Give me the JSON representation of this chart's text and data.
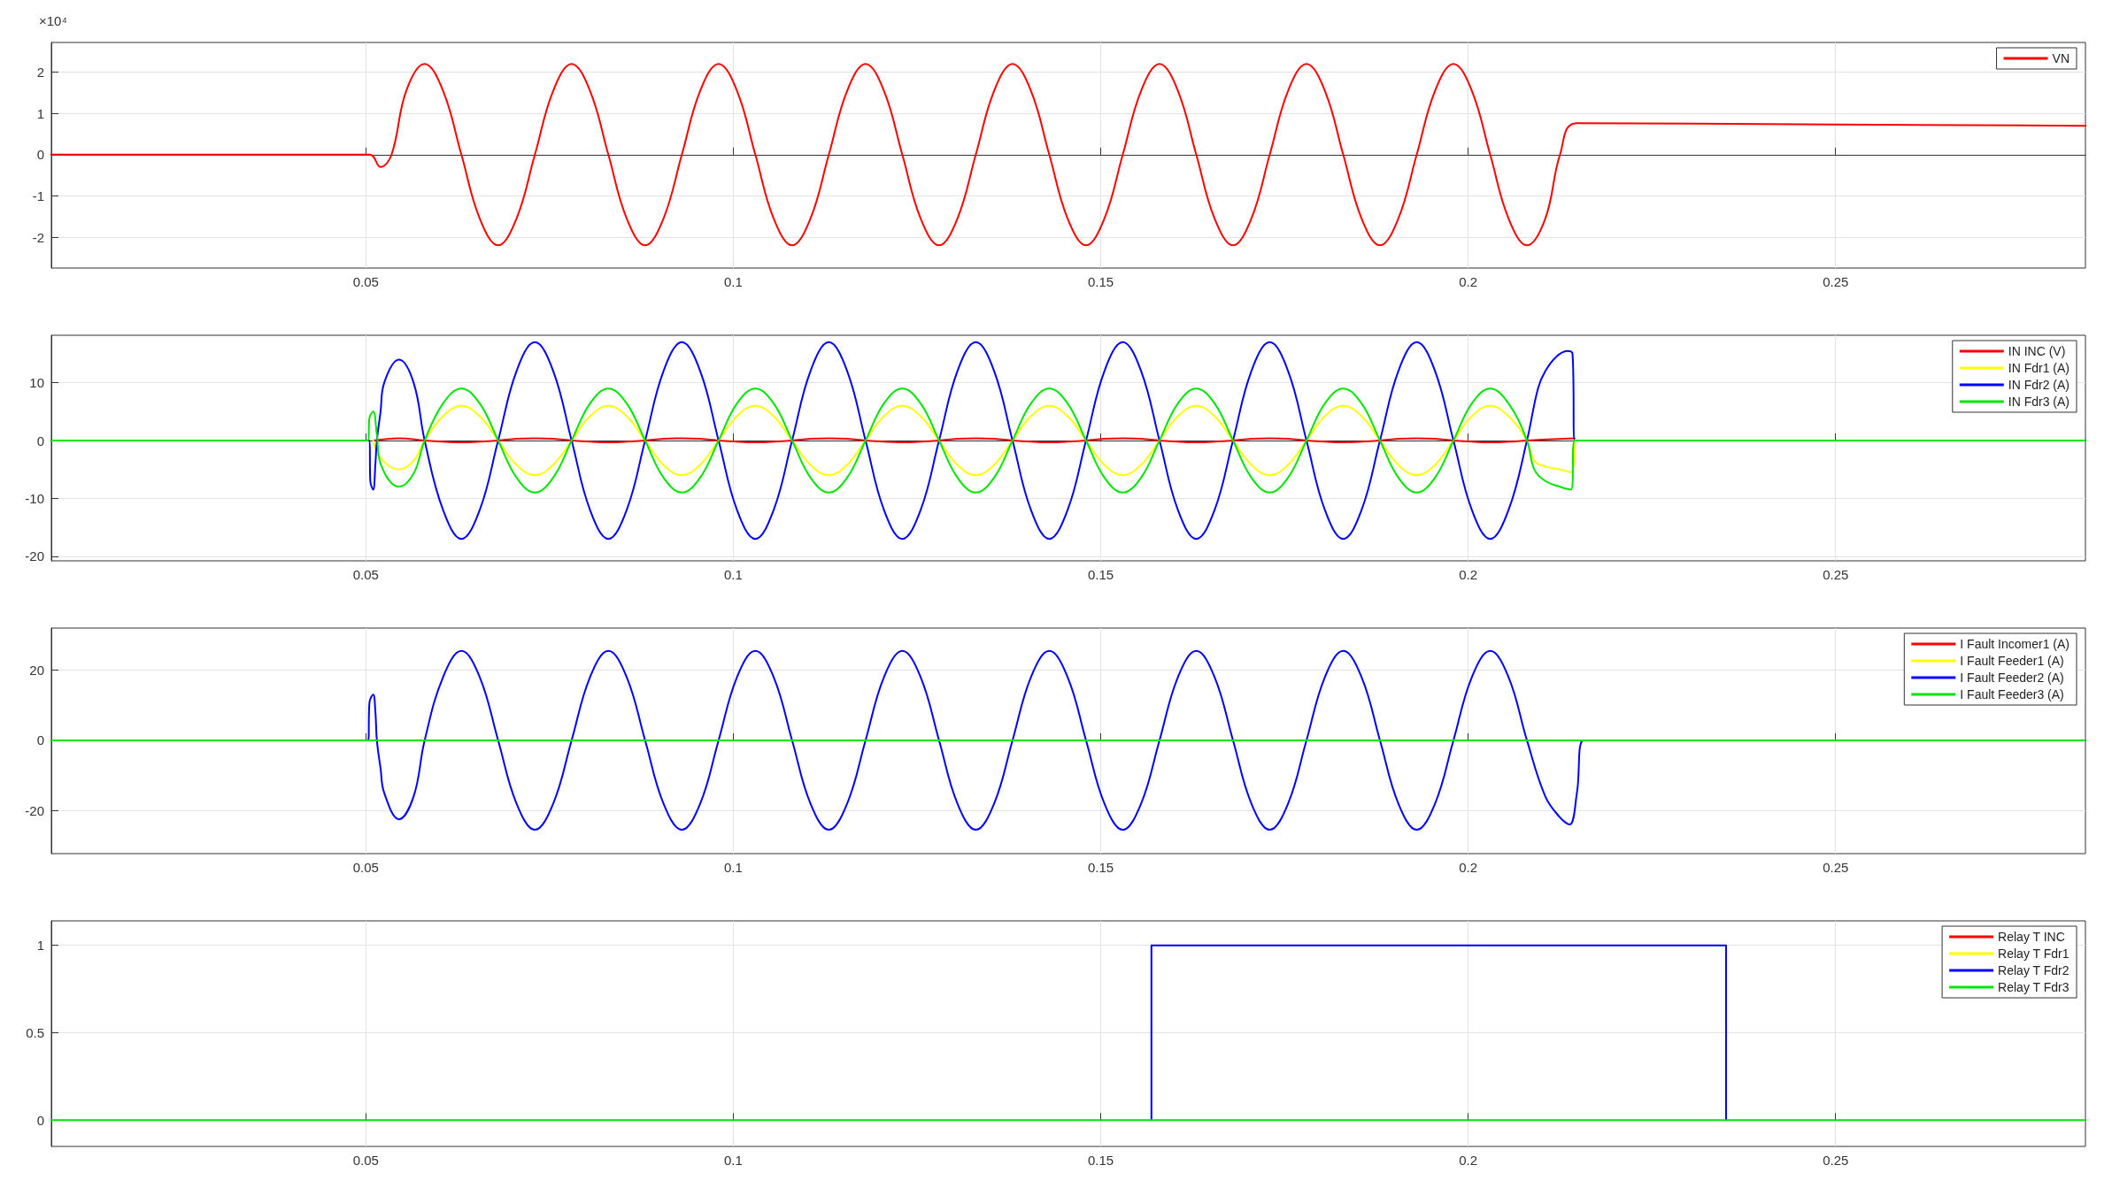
{
  "chart_data": [
    {
      "type": "line",
      "annotations": [
        "×10⁴"
      ],
      "xlim": [
        0.0072,
        0.284
      ],
      "xticks": [
        0.05,
        0.1,
        0.15,
        0.2,
        0.25
      ],
      "ylim": [
        -2.75,
        2.72
      ],
      "yticks": [
        -2,
        -1,
        0,
        1,
        2
      ],
      "grid": true,
      "legend": "top right",
      "marker": "none",
      "line_style": "solid",
      "series": [
        {
          "name": "VN",
          "color": "#ff0000",
          "x": [
            0.0072,
            0.0505,
            0.052,
            0.0535,
            0.0555,
            0.058,
            0.0605,
            0.063,
            0.0655,
            0.068,
            0.0705,
            0.073,
            0.0755,
            0.078,
            0.0805,
            0.083,
            0.0855,
            0.088,
            0.0905,
            0.093,
            0.0955,
            0.098,
            0.1005,
            0.103,
            0.1055,
            0.108,
            0.1105,
            0.113,
            0.1155,
            0.118,
            0.1205,
            0.123,
            0.1255,
            0.128,
            0.1305,
            0.133,
            0.1355,
            0.138,
            0.1405,
            0.143,
            0.1455,
            0.148,
            0.1505,
            0.153,
            0.1555,
            0.158,
            0.1605,
            0.163,
            0.1655,
            0.168,
            0.1705,
            0.173,
            0.1755,
            0.178,
            0.1805,
            0.183,
            0.1855,
            0.188,
            0.1905,
            0.193,
            0.1955,
            0.198,
            0.2005,
            0.203,
            0.2055,
            0.208,
            0.2105,
            0.2125,
            0.2147,
            0.25,
            0.284
          ],
          "values": [
            0,
            0,
            -0.3,
            0,
            1.55,
            2.2,
            1.55,
            0,
            -1.55,
            -2.2,
            -1.55,
            0,
            1.55,
            2.2,
            1.55,
            0,
            -1.55,
            -2.2,
            -1.55,
            0,
            1.55,
            2.2,
            1.55,
            0,
            -1.55,
            -2.2,
            -1.55,
            0,
            1.55,
            2.2,
            1.55,
            0,
            -1.55,
            -2.2,
            -1.55,
            0,
            1.55,
            2.2,
            1.55,
            0,
            -1.55,
            -2.2,
            -1.55,
            0,
            1.55,
            2.2,
            1.55,
            0,
            -1.55,
            -2.2,
            -1.55,
            0,
            1.55,
            2.2,
            1.55,
            0,
            -1.55,
            -2.2,
            -1.55,
            0,
            1.55,
            2.2,
            1.55,
            0,
            -1.55,
            -2.2,
            -1.55,
            0,
            0.76,
            0.73,
            0.7
          ]
        }
      ]
    },
    {
      "type": "line",
      "xlim": [
        0.0072,
        0.284
      ],
      "xticks": [
        0.05,
        0.1,
        0.15,
        0.2,
        0.25
      ],
      "ylim": [
        -20.8,
        18.2
      ],
      "yticks": [
        -20,
        -10,
        0,
        10
      ],
      "grid": true,
      "legend": "top right",
      "marker": "none",
      "line_style": "solid",
      "series": [
        {
          "name": "IN INC (V)",
          "color": "#ff0000",
          "x": [
            0.051,
            0.0545,
            0.058,
            0.0605,
            0.063,
            0.0655,
            0.068,
            0.0705,
            0.073,
            0.0755,
            0.078,
            0.0805,
            0.083,
            0.0855,
            0.088,
            0.0905,
            0.093,
            0.0955,
            0.098,
            0.1005,
            0.103,
            0.1055,
            0.108,
            0.1105,
            0.113,
            0.1155,
            0.118,
            0.1205,
            0.123,
            0.1255,
            0.128,
            0.1305,
            0.133,
            0.1355,
            0.138,
            0.1405,
            0.143,
            0.1455,
            0.148,
            0.1505,
            0.153,
            0.1555,
            0.158,
            0.1605,
            0.163,
            0.1655,
            0.168,
            0.1705,
            0.173,
            0.1755,
            0.178,
            0.1805,
            0.183,
            0.1855,
            0.188,
            0.1905,
            0.193,
            0.1955,
            0.198,
            0.2005,
            0.203,
            0.2055,
            0.208,
            0.2145
          ],
          "values": [
            0,
            0.4,
            0,
            -0.2,
            -0.3,
            -0.2,
            0,
            0.3,
            0.4,
            0.3,
            0,
            -0.2,
            -0.3,
            -0.2,
            0,
            0.3,
            0.4,
            0.3,
            0,
            -0.2,
            -0.3,
            -0.2,
            0,
            0.3,
            0.4,
            0.3,
            0,
            -0.2,
            -0.3,
            -0.2,
            0,
            0.3,
            0.4,
            0.3,
            0,
            -0.2,
            -0.3,
            -0.2,
            0,
            0.3,
            0.4,
            0.3,
            0,
            -0.2,
            -0.3,
            -0.2,
            0,
            0.3,
            0.4,
            0.3,
            0,
            -0.2,
            -0.3,
            -0.2,
            0,
            0.3,
            0.4,
            0.3,
            0,
            -0.2,
            -0.3,
            -0.2,
            0,
            0.4
          ]
        },
        {
          "name": "IN Fdr1 (A)",
          "color": "#ffff00",
          "x": [
            0.051,
            0.052,
            0.0545,
            0.0565,
            0.058,
            0.0605,
            0.063,
            0.0655,
            0.068,
            0.0705,
            0.073,
            0.0755,
            0.078,
            0.0805,
            0.083,
            0.0855,
            0.088,
            0.0905,
            0.093,
            0.0955,
            0.098,
            0.1005,
            0.103,
            0.1055,
            0.108,
            0.1105,
            0.113,
            0.1155,
            0.118,
            0.1205,
            0.123,
            0.1255,
            0.128,
            0.1305,
            0.133,
            0.1355,
            0.138,
            0.1405,
            0.143,
            0.1455,
            0.148,
            0.1505,
            0.153,
            0.1555,
            0.158,
            0.1605,
            0.163,
            0.1655,
            0.168,
            0.1705,
            0.173,
            0.1755,
            0.178,
            0.1805,
            0.183,
            0.1855,
            0.188,
            0.1905,
            0.193,
            0.1955,
            0.198,
            0.2005,
            0.203,
            0.2055,
            0.208,
            0.209,
            0.2105,
            0.2125,
            0.214,
            0.2145
          ],
          "values": [
            0,
            -3,
            -5,
            -3.5,
            0,
            4.2,
            6,
            4.2,
            0,
            -4.2,
            -6,
            -4.2,
            0,
            4.2,
            6,
            4.2,
            0,
            -4.2,
            -6,
            -4.2,
            0,
            4.2,
            6,
            4.2,
            0,
            -4.2,
            -6,
            -4.2,
            0,
            4.2,
            6,
            4.2,
            0,
            -4.2,
            -6,
            -4.2,
            0,
            4.2,
            6,
            4.2,
            0,
            -4.2,
            -6,
            -4.2,
            0,
            4.2,
            6,
            4.2,
            0,
            -4.2,
            -6,
            -4.2,
            0,
            4.2,
            6,
            4.2,
            0,
            -4.2,
            -6,
            -4.2,
            0,
            4.2,
            6,
            4.2,
            0,
            -3.5,
            -4.5,
            -5,
            -5.5,
            0
          ]
        },
        {
          "name": "IN Fdr2 (A)",
          "color": "#0000ff",
          "x": [
            0.0072,
            0.0505,
            0.0506,
            0.051,
            0.0513,
            0.0515,
            0.052,
            0.0525,
            0.0545,
            0.0565,
            0.058,
            0.0605,
            0.063,
            0.0655,
            0.068,
            0.0705,
            0.073,
            0.0755,
            0.078,
            0.0805,
            0.083,
            0.0855,
            0.088,
            0.0905,
            0.093,
            0.0955,
            0.098,
            0.1005,
            0.103,
            0.1055,
            0.108,
            0.1105,
            0.113,
            0.1155,
            0.118,
            0.1205,
            0.123,
            0.1255,
            0.128,
            0.1305,
            0.133,
            0.1355,
            0.138,
            0.1405,
            0.143,
            0.1455,
            0.148,
            0.1505,
            0.153,
            0.1555,
            0.158,
            0.1605,
            0.163,
            0.1655,
            0.168,
            0.1705,
            0.173,
            0.1755,
            0.178,
            0.1805,
            0.183,
            0.1855,
            0.188,
            0.1905,
            0.193,
            0.1955,
            0.198,
            0.2005,
            0.203,
            0.2055,
            0.208,
            0.2095,
            0.2105,
            0.212,
            0.2135,
            0.2142,
            0.2145,
            0.284
          ],
          "values": [
            0,
            0,
            -7,
            -8.5,
            -4,
            0,
            5,
            10,
            14,
            10,
            0,
            -12,
            -17,
            -12,
            0,
            12,
            17,
            12,
            0,
            -12,
            -17,
            -12,
            0,
            12,
            17,
            12,
            0,
            -12,
            -17,
            -12,
            0,
            12,
            17,
            12,
            0,
            -12,
            -17,
            -12,
            0,
            12,
            17,
            12,
            0,
            -12,
            -17,
            -12,
            0,
            12,
            17,
            12,
            0,
            -12,
            -17,
            -12,
            0,
            12,
            17,
            12,
            0,
            -12,
            -17,
            -12,
            0,
            12,
            17,
            12,
            0,
            -12,
            -17,
            -12,
            0,
            9,
            12,
            14.5,
            15.5,
            15,
            0,
            0
          ]
        },
        {
          "name": "IN Fdr3 (A)",
          "color": "#00e600",
          "x": [
            0.0072,
            0.0503,
            0.0505,
            0.051,
            0.0515,
            0.052,
            0.0545,
            0.0565,
            0.058,
            0.0605,
            0.063,
            0.0655,
            0.068,
            0.0705,
            0.073,
            0.0755,
            0.078,
            0.0805,
            0.083,
            0.0855,
            0.088,
            0.0905,
            0.093,
            0.0955,
            0.098,
            0.1005,
            0.103,
            0.1055,
            0.108,
            0.1105,
            0.113,
            0.1155,
            0.118,
            0.1205,
            0.123,
            0.1255,
            0.128,
            0.1305,
            0.133,
            0.1355,
            0.138,
            0.1405,
            0.143,
            0.1455,
            0.148,
            0.1505,
            0.153,
            0.1555,
            0.158,
            0.1605,
            0.163,
            0.1655,
            0.168,
            0.1705,
            0.173,
            0.1755,
            0.178,
            0.1805,
            0.183,
            0.1855,
            0.188,
            0.1905,
            0.193,
            0.1955,
            0.198,
            0.2005,
            0.203,
            0.2055,
            0.208,
            0.209,
            0.2105,
            0.2125,
            0.214,
            0.2145,
            0.284
          ],
          "values": [
            0,
            0,
            4,
            5,
            1,
            -4,
            -8,
            -5.7,
            0,
            6.4,
            9,
            6.4,
            0,
            -6.4,
            -9,
            -6.4,
            0,
            6.4,
            9,
            6.4,
            0,
            -6.4,
            -9,
            -6.4,
            0,
            6.4,
            9,
            6.4,
            0,
            -6.4,
            -9,
            -6.4,
            0,
            6.4,
            9,
            6.4,
            0,
            -6.4,
            -9,
            -6.4,
            0,
            6.4,
            9,
            6.4,
            0,
            -6.4,
            -9,
            -6.4,
            0,
            6.4,
            9,
            6.4,
            0,
            -6.4,
            -9,
            -6.4,
            0,
            6.4,
            9,
            6.4,
            0,
            -6.4,
            -9,
            -6.4,
            0,
            6.4,
            9,
            6.4,
            0,
            -5,
            -7,
            -8,
            -8.5,
            0,
            0
          ]
        }
      ]
    },
    {
      "type": "line",
      "xlim": [
        0.0072,
        0.284
      ],
      "xticks": [
        0.05,
        0.1,
        0.15,
        0.2,
        0.25
      ],
      "ylim": [
        -32.3,
        32
      ],
      "yticks": [
        -20,
        0,
        20
      ],
      "grid": true,
      "legend": "top right",
      "marker": "none",
      "line_style": "solid",
      "series": [
        {
          "name": "I Fault Incomer1 (A)",
          "color": "#ff0000"
        },
        {
          "name": "I Fault Feeder1 (A)",
          "color": "#ffff00"
        },
        {
          "name": "I Fault Feeder2 (A)",
          "color": "#0000ff",
          "x": [
            0.0072,
            0.0503,
            0.0505,
            0.051,
            0.0513,
            0.0515,
            0.052,
            0.0525,
            0.0545,
            0.0565,
            0.058,
            0.0605,
            0.063,
            0.0655,
            0.068,
            0.0705,
            0.073,
            0.0755,
            0.078,
            0.0805,
            0.083,
            0.0855,
            0.088,
            0.0905,
            0.093,
            0.0955,
            0.098,
            0.1005,
            0.103,
            0.1055,
            0.108,
            0.1105,
            0.113,
            0.1155,
            0.118,
            0.1205,
            0.123,
            0.1255,
            0.128,
            0.1305,
            0.133,
            0.1355,
            0.138,
            0.1405,
            0.143,
            0.1455,
            0.148,
            0.1505,
            0.153,
            0.1555,
            0.158,
            0.1605,
            0.163,
            0.1655,
            0.168,
            0.1705,
            0.173,
            0.1755,
            0.178,
            0.1805,
            0.183,
            0.1855,
            0.188,
            0.1905,
            0.193,
            0.1955,
            0.198,
            0.2005,
            0.203,
            0.2055,
            0.208,
            0.2105,
            0.2125,
            0.2138,
            0.2148,
            0.2157,
            0.284
          ],
          "values": [
            0,
            0,
            11,
            13,
            8,
            0,
            -8,
            -15,
            -22.5,
            -16,
            0,
            18,
            25.5,
            18,
            0,
            -18,
            -25.5,
            -18,
            0,
            18,
            25.5,
            18,
            0,
            -18,
            -25.5,
            -18,
            0,
            18,
            25.5,
            18,
            0,
            -18,
            -25.5,
            -18,
            0,
            18,
            25.5,
            18,
            0,
            -18,
            -25.5,
            -18,
            0,
            18,
            25.5,
            18,
            0,
            -18,
            -25.5,
            -18,
            0,
            18,
            25.5,
            18,
            0,
            -18,
            -25.5,
            -18,
            0,
            18,
            25.5,
            18,
            0,
            -18,
            -25.5,
            -18,
            0,
            18,
            25.5,
            18,
            0,
            -16,
            -22,
            -24,
            -15,
            0,
            0
          ]
        },
        {
          "name": "I Fault Feeder3 (A)",
          "color": "#00e600",
          "x": [
            0.0072,
            0.284
          ],
          "values": [
            0,
            0
          ]
        }
      ]
    },
    {
      "type": "line",
      "xlim": [
        0.0072,
        0.284
      ],
      "xticks": [
        0.05,
        0.1,
        0.15,
        0.2,
        0.25
      ],
      "ylim": [
        -0.15,
        1.14
      ],
      "yticks": [
        0,
        0.5,
        1
      ],
      "grid": true,
      "legend": "top right",
      "marker": "none",
      "line_style": "solid",
      "series": [
        {
          "name": "Relay T INC",
          "color": "#ff0000"
        },
        {
          "name": "Relay T Fdr1",
          "color": "#ffff00"
        },
        {
          "name": "Relay T Fdr2",
          "color": "#0000ff",
          "x": [
            0.1569,
            0.1569,
            0.2351,
            0.2351
          ],
          "values": [
            0,
            1,
            1,
            0
          ]
        },
        {
          "name": "Relay T Fdr3",
          "color": "#00e600",
          "x": [
            0.0072,
            0.284
          ],
          "values": [
            0,
            0
          ]
        }
      ]
    }
  ]
}
